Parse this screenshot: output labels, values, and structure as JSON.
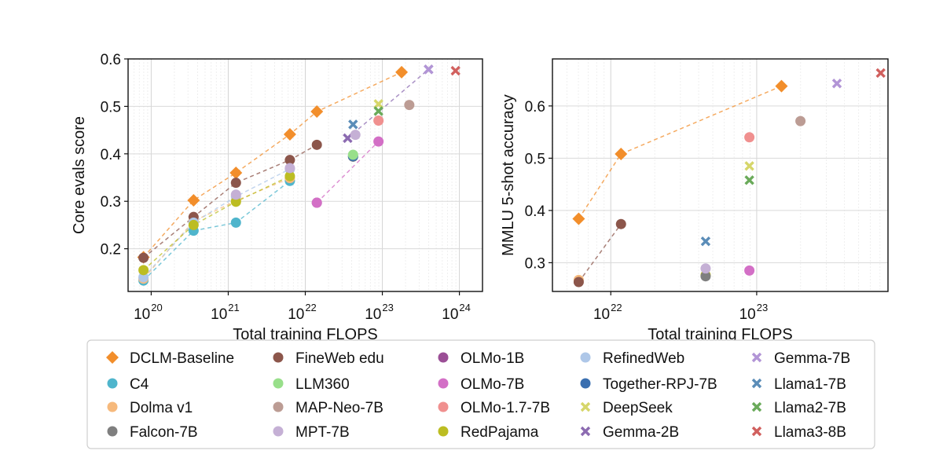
{
  "chart_data": [
    {
      "type": "scatter",
      "xscale": "log",
      "xlabel": "Total training FLOPS",
      "ylabel": "Core evals score",
      "xlim_log10": [
        19.7,
        24.3
      ],
      "ylim": [
        0.11,
        0.6
      ],
      "xticks": [
        {
          "base": "10",
          "exp": "20"
        },
        {
          "base": "10",
          "exp": "21"
        },
        {
          "base": "10",
          "exp": "22"
        },
        {
          "base": "10",
          "exp": "23"
        },
        {
          "base": "10",
          "exp": "24"
        }
      ],
      "xtick_values_log10": [
        20,
        21,
        22,
        23,
        24
      ],
      "yticks": [
        "0.2",
        "0.3",
        "0.4",
        "0.5",
        "0.6"
      ],
      "ytick_values": [
        0.2,
        0.3,
        0.4,
        0.5,
        0.6
      ],
      "grid": true,
      "series": [
        {
          "name": "DCLM-Baseline",
          "marker": "diamond",
          "color": "#f28e2b",
          "dashed": true,
          "points": [
            [
              19.9,
              0.182
            ],
            [
              20.55,
              0.302
            ],
            [
              21.1,
              0.36
            ],
            [
              21.8,
              0.441
            ],
            [
              22.15,
              0.489
            ],
            [
              23.25,
              0.572
            ]
          ]
        },
        {
          "name": "C4",
          "marker": "circle",
          "color": "#4fb5cc",
          "dashed": true,
          "points": [
            [
              19.9,
              0.133
            ],
            [
              20.55,
              0.238
            ],
            [
              21.1,
              0.255
            ],
            [
              21.8,
              0.343
            ]
          ]
        },
        {
          "name": "Dolma v1",
          "marker": "circle",
          "color": "#f6b97c",
          "dashed": true,
          "points": [
            [
              19.9,
              0.137
            ],
            [
              20.55,
              0.258
            ],
            [
              21.1,
              0.301
            ],
            [
              21.8,
              0.349
            ]
          ]
        },
        {
          "name": "FineWeb edu",
          "marker": "circle",
          "color": "#8c564b",
          "dashed": true,
          "points": [
            [
              19.9,
              0.181
            ],
            [
              20.55,
              0.267
            ],
            [
              21.1,
              0.339
            ],
            [
              21.8,
              0.387
            ],
            [
              22.15,
              0.419
            ]
          ]
        },
        {
          "name": "RefinedWeb",
          "marker": "circle",
          "color": "#aec7e8",
          "dashed": true,
          "points": [
            [
              19.9,
              0.14
            ],
            [
              20.55,
              0.255
            ],
            [
              21.1,
              0.31
            ],
            [
              21.8,
              0.368
            ]
          ]
        },
        {
          "name": "RedPajama",
          "marker": "circle",
          "color": "#bcbd22",
          "dashed": true,
          "points": [
            [
              19.9,
              0.155
            ],
            [
              20.55,
              0.25
            ],
            [
              21.1,
              0.299
            ],
            [
              21.8,
              0.353
            ]
          ]
        },
        {
          "name": "MPT-7B",
          "marker": "circle",
          "color": "#c5b0d5",
          "dashed": false,
          "points": [
            [
              21.1,
              0.314
            ],
            [
              21.8,
              0.37
            ]
          ]
        },
        {
          "name": "OLMo-1B",
          "marker": "circle",
          "color": "#9b4f96",
          "dashed": false,
          "points": [
            [
              22.15,
              0.297
            ]
          ]
        },
        {
          "name": "OLMo-7B",
          "marker": "circle",
          "color": "#d36fc6",
          "dashed": true,
          "points": [
            [
              22.15,
              0.297
            ],
            [
              22.95,
              0.426
            ]
          ]
        },
        {
          "name": "OLMo-1.7-7B",
          "marker": "circle",
          "color": "#f0908f",
          "dashed": false,
          "points": [
            [
              22.95,
              0.47
            ]
          ]
        },
        {
          "name": "Falcon-7B",
          "marker": "circle",
          "color": "#7f7f7f",
          "dashed": false,
          "points": [
            [
              22.62,
              0.394
            ]
          ]
        },
        {
          "name": "Together-RPJ-7B",
          "marker": "circle",
          "color": "#3a6fb0",
          "dashed": false,
          "points": [
            [
              22.62,
              0.395
            ]
          ]
        },
        {
          "name": "LLM360",
          "marker": "circle",
          "color": "#98df8a",
          "dashed": false,
          "points": [
            [
              22.62,
              0.398
            ]
          ]
        },
        {
          "name": "MAP-Neo-7B",
          "marker": "circle",
          "color": "#bc9c94",
          "dashed": false,
          "points": [
            [
              23.35,
              0.503
            ]
          ]
        },
        {
          "name": "DeepSeek",
          "marker": "x",
          "color": "#d6d66a",
          "dashed": false,
          "points": [
            [
              22.95,
              0.505
            ]
          ]
        },
        {
          "name": "Gemma-2B",
          "marker": "x",
          "color": "#8c6bb1",
          "dashed": true,
          "points": [
            [
              22.55,
              0.433
            ],
            [
              23.6,
              0.578
            ]
          ]
        },
        {
          "name": "Gemma-7B",
          "marker": "x",
          "color": "#b295d6",
          "dashed": false,
          "points": [
            [
              23.6,
              0.578
            ]
          ]
        },
        {
          "name": "Llama1-7B",
          "marker": "x",
          "color": "#5b8db8",
          "dashed": false,
          "points": [
            [
              22.62,
              0.462
            ]
          ]
        },
        {
          "name": "Llama2-7B",
          "marker": "x",
          "color": "#6aaa5a",
          "dashed": false,
          "points": [
            [
              22.95,
              0.49
            ]
          ]
        },
        {
          "name": "Llama3-8B",
          "marker": "x",
          "color": "#d1605e",
          "dashed": false,
          "points": [
            [
              23.95,
              0.575
            ]
          ]
        },
        {
          "name": "MPT-7B (pt2)",
          "marker": "circle",
          "color": "#c5b0d5",
          "dashed": false,
          "points": [
            [
              22.65,
              0.44
            ]
          ]
        }
      ]
    },
    {
      "type": "scatter",
      "xscale": "log",
      "xlabel": "Total training FLOPS",
      "ylabel": "MMLU 5-shot accuracy",
      "xlim_log10": [
        21.6,
        23.9
      ],
      "ylim": [
        0.245,
        0.69
      ],
      "xticks": [
        {
          "base": "10",
          "exp": "22"
        },
        {
          "base": "10",
          "exp": "23"
        }
      ],
      "xtick_values_log10": [
        22,
        23
      ],
      "yticks": [
        "0.3",
        "0.4",
        "0.5",
        "0.6"
      ],
      "ytick_values": [
        0.3,
        0.4,
        0.5,
        0.6
      ],
      "grid": true,
      "series": [
        {
          "name": "DCLM-Baseline",
          "marker": "diamond",
          "color": "#f28e2b",
          "dashed": true,
          "points": [
            [
              21.78,
              0.384
            ],
            [
              22.07,
              0.508
            ],
            [
              23.17,
              0.638
            ]
          ]
        },
        {
          "name": "Dolma v1",
          "marker": "circle",
          "color": "#f6b97c",
          "dashed": true,
          "points": [
            [
              21.78,
              0.267
            ]
          ]
        },
        {
          "name": "FineWeb edu",
          "marker": "circle",
          "color": "#8c564b",
          "dashed": true,
          "points": [
            [
              21.78,
              0.263
            ],
            [
              22.07,
              0.374
            ]
          ]
        },
        {
          "name": "RedPajama",
          "marker": "circle",
          "color": "#bcbd22",
          "dashed": false,
          "points": [
            [
              22.65,
              0.276
            ]
          ]
        },
        {
          "name": "Falcon-7B",
          "marker": "circle",
          "color": "#7f7f7f",
          "dashed": false,
          "points": [
            [
              22.65,
              0.274
            ]
          ]
        },
        {
          "name": "MPT-7B",
          "marker": "circle",
          "color": "#c5b0d5",
          "dashed": false,
          "points": [
            [
              22.65,
              0.289
            ]
          ]
        },
        {
          "name": "OLMo-7B",
          "marker": "circle",
          "color": "#d36fc6",
          "dashed": false,
          "points": [
            [
              22.95,
              0.285
            ]
          ]
        },
        {
          "name": "OLMo-1.7-7B",
          "marker": "circle",
          "color": "#f0908f",
          "dashed": false,
          "points": [
            [
              22.95,
              0.54
            ]
          ]
        },
        {
          "name": "MAP-Neo-7B",
          "marker": "circle",
          "color": "#bc9c94",
          "dashed": false,
          "points": [
            [
              23.3,
              0.571
            ]
          ]
        },
        {
          "name": "Llama1-7B",
          "marker": "x",
          "color": "#5b8db8",
          "dashed": false,
          "points": [
            [
              22.65,
              0.341
            ]
          ]
        },
        {
          "name": "DeepSeek",
          "marker": "x",
          "color": "#d6d66a",
          "dashed": false,
          "points": [
            [
              22.95,
              0.485
            ]
          ]
        },
        {
          "name": "Llama2-7B",
          "marker": "x",
          "color": "#6aaa5a",
          "dashed": false,
          "points": [
            [
              22.95,
              0.458
            ]
          ]
        },
        {
          "name": "Gemma-7B",
          "marker": "x",
          "color": "#b295d6",
          "dashed": false,
          "points": [
            [
              23.55,
              0.643
            ]
          ]
        },
        {
          "name": "Llama3-8B",
          "marker": "x",
          "color": "#d1605e",
          "dashed": false,
          "points": [
            [
              23.85,
              0.663
            ]
          ]
        }
      ]
    }
  ],
  "legend": {
    "columns": [
      [
        {
          "label": "DCLM-Baseline",
          "marker": "diamond",
          "color": "#f28e2b"
        },
        {
          "label": "C4",
          "marker": "circle",
          "color": "#4fb5cc"
        },
        {
          "label": "Dolma v1",
          "marker": "circle",
          "color": "#f6b97c"
        },
        {
          "label": "Falcon-7B",
          "marker": "circle",
          "color": "#7f7f7f"
        }
      ],
      [
        {
          "label": "FineWeb edu",
          "marker": "circle",
          "color": "#8c564b"
        },
        {
          "label": "LLM360",
          "marker": "circle",
          "color": "#98df8a"
        },
        {
          "label": "MAP-Neo-7B",
          "marker": "circle",
          "color": "#bc9c94"
        },
        {
          "label": "MPT-7B",
          "marker": "circle",
          "color": "#c5b0d5"
        }
      ],
      [
        {
          "label": "OLMo-1B",
          "marker": "circle",
          "color": "#9b4f96"
        },
        {
          "label": "OLMo-7B",
          "marker": "circle",
          "color": "#d36fc6"
        },
        {
          "label": "OLMo-1.7-7B",
          "marker": "circle",
          "color": "#f0908f"
        },
        {
          "label": "RedPajama",
          "marker": "circle",
          "color": "#bcbd22"
        }
      ],
      [
        {
          "label": "RefinedWeb",
          "marker": "circle",
          "color": "#aec7e8"
        },
        {
          "label": "Together-RPJ-7B",
          "marker": "circle",
          "color": "#3a6fb0"
        },
        {
          "label": "DeepSeek",
          "marker": "x",
          "color": "#d6d66a"
        },
        {
          "label": "Gemma-2B",
          "marker": "x",
          "color": "#8c6bb1"
        }
      ],
      [
        {
          "label": "Gemma-7B",
          "marker": "x",
          "color": "#b295d6"
        },
        {
          "label": "Llama1-7B",
          "marker": "x",
          "color": "#5b8db8"
        },
        {
          "label": "Llama2-7B",
          "marker": "x",
          "color": "#6aaa5a"
        },
        {
          "label": "Llama3-8B",
          "marker": "x",
          "color": "#d1605e"
        }
      ]
    ]
  }
}
